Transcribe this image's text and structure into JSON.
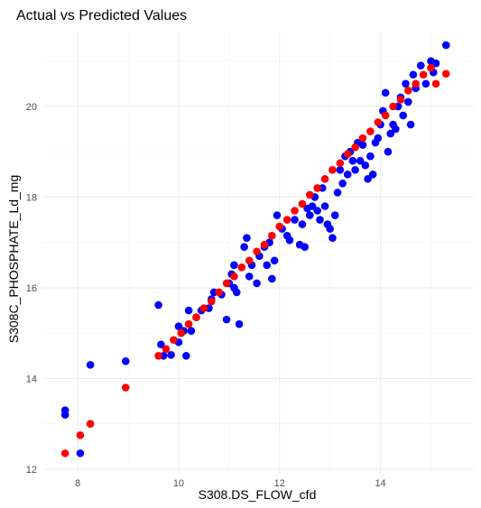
{
  "chart_data": {
    "type": "scatter",
    "title": "Actual vs Predicted Values",
    "xlabel": "S308.DS_FLOW_cfd",
    "ylabel": "S308C_PHOSPHATE_Ld_mg",
    "xlim": [
      7.3,
      15.85
    ],
    "ylim": [
      11.9,
      21.65
    ],
    "x_ticks": [
      8,
      10,
      12,
      14
    ],
    "y_ticks": [
      12,
      14,
      16,
      18,
      20
    ],
    "x_tick_labels": [
      "8",
      "10",
      "12",
      "14"
    ],
    "y_tick_labels": [
      "12",
      "14",
      "16",
      "18",
      "20"
    ],
    "grid": true,
    "legend": "none",
    "series": [
      {
        "color": "#0000ff",
        "points": [
          [
            7.75,
            13.3
          ],
          [
            7.75,
            13.2
          ],
          [
            8.05,
            12.35
          ],
          [
            8.25,
            14.3
          ],
          [
            8.95,
            14.38
          ],
          [
            9.6,
            15.62
          ],
          [
            9.65,
            14.75
          ],
          [
            9.7,
            14.5
          ],
          [
            9.85,
            14.52
          ],
          [
            10.0,
            14.8
          ],
          [
            10.0,
            15.15
          ],
          [
            10.1,
            15.05
          ],
          [
            10.15,
            14.5
          ],
          [
            10.2,
            15.5
          ],
          [
            10.25,
            15.05
          ],
          [
            10.35,
            15.35
          ],
          [
            10.45,
            15.5
          ],
          [
            10.6,
            15.55
          ],
          [
            10.65,
            15.75
          ],
          [
            10.7,
            15.9
          ],
          [
            10.85,
            15.85
          ],
          [
            10.95,
            15.3
          ],
          [
            11.0,
            16.1
          ],
          [
            11.05,
            16.3
          ],
          [
            11.1,
            16.5
          ],
          [
            11.1,
            16.0
          ],
          [
            11.15,
            15.9
          ],
          [
            11.2,
            15.2
          ],
          [
            11.3,
            16.9
          ],
          [
            11.35,
            17.1
          ],
          [
            11.4,
            16.25
          ],
          [
            11.45,
            16.5
          ],
          [
            11.55,
            16.1
          ],
          [
            11.6,
            16.7
          ],
          [
            11.7,
            16.9
          ],
          [
            11.75,
            16.5
          ],
          [
            11.8,
            17.0
          ],
          [
            11.85,
            16.2
          ],
          [
            11.9,
            16.6
          ],
          [
            11.95,
            17.6
          ],
          [
            12.05,
            17.3
          ],
          [
            12.15,
            17.15
          ],
          [
            12.2,
            17.05
          ],
          [
            12.3,
            17.5
          ],
          [
            12.4,
            16.95
          ],
          [
            12.45,
            17.4
          ],
          [
            12.5,
            16.9
          ],
          [
            12.55,
            17.75
          ],
          [
            12.6,
            17.6
          ],
          [
            12.65,
            17.8
          ],
          [
            12.7,
            18.0
          ],
          [
            12.75,
            17.7
          ],
          [
            12.8,
            17.5
          ],
          [
            12.85,
            18.2
          ],
          [
            12.9,
            17.8
          ],
          [
            12.95,
            17.4
          ],
          [
            13.0,
            17.3
          ],
          [
            13.05,
            17.1
          ],
          [
            13.1,
            17.6
          ],
          [
            13.15,
            18.1
          ],
          [
            13.2,
            18.6
          ],
          [
            13.25,
            18.3
          ],
          [
            13.3,
            18.9
          ],
          [
            13.35,
            18.5
          ],
          [
            13.4,
            19.0
          ],
          [
            13.45,
            18.8
          ],
          [
            13.5,
            18.6
          ],
          [
            13.55,
            19.2
          ],
          [
            13.6,
            18.8
          ],
          [
            13.65,
            19.15
          ],
          [
            13.7,
            18.7
          ],
          [
            13.75,
            18.4
          ],
          [
            13.8,
            18.9
          ],
          [
            13.85,
            18.5
          ],
          [
            13.9,
            19.2
          ],
          [
            13.95,
            19.3
          ],
          [
            14.0,
            19.6
          ],
          [
            14.05,
            19.9
          ],
          [
            14.1,
            20.3
          ],
          [
            14.15,
            19.0
          ],
          [
            14.2,
            19.4
          ],
          [
            14.25,
            19.6
          ],
          [
            14.3,
            19.5
          ],
          [
            14.35,
            20.0
          ],
          [
            14.4,
            20.2
          ],
          [
            14.45,
            19.8
          ],
          [
            14.5,
            20.5
          ],
          [
            14.55,
            20.1
          ],
          [
            14.6,
            19.6
          ],
          [
            14.65,
            20.7
          ],
          [
            14.7,
            20.4
          ],
          [
            14.8,
            20.9
          ],
          [
            14.9,
            20.5
          ],
          [
            15.0,
            21.0
          ],
          [
            15.05,
            20.75
          ],
          [
            15.1,
            20.95
          ],
          [
            15.3,
            21.35
          ]
        ]
      },
      {
        "color": "#ff0000",
        "points": [
          [
            7.75,
            12.35
          ],
          [
            8.05,
            12.75
          ],
          [
            8.25,
            13.0
          ],
          [
            8.95,
            13.8
          ],
          [
            9.6,
            14.5
          ],
          [
            9.75,
            14.65
          ],
          [
            9.9,
            14.85
          ],
          [
            10.05,
            15.0
          ],
          [
            10.2,
            15.2
          ],
          [
            10.35,
            15.35
          ],
          [
            10.5,
            15.55
          ],
          [
            10.65,
            15.7
          ],
          [
            10.8,
            15.9
          ],
          [
            10.95,
            16.1
          ],
          [
            11.1,
            16.25
          ],
          [
            11.25,
            16.45
          ],
          [
            11.4,
            16.6
          ],
          [
            11.55,
            16.8
          ],
          [
            11.7,
            16.95
          ],
          [
            11.85,
            17.15
          ],
          [
            12.0,
            17.35
          ],
          [
            12.15,
            17.5
          ],
          [
            12.3,
            17.7
          ],
          [
            12.45,
            17.85
          ],
          [
            12.6,
            18.05
          ],
          [
            12.75,
            18.2
          ],
          [
            12.9,
            18.4
          ],
          [
            13.05,
            18.6
          ],
          [
            13.2,
            18.75
          ],
          [
            13.35,
            18.95
          ],
          [
            13.5,
            19.1
          ],
          [
            13.65,
            19.3
          ],
          [
            13.8,
            19.45
          ],
          [
            13.95,
            19.65
          ],
          [
            14.1,
            19.8
          ],
          [
            14.25,
            20.0
          ],
          [
            14.4,
            20.15
          ],
          [
            14.55,
            20.35
          ],
          [
            14.7,
            20.5
          ],
          [
            14.85,
            20.7
          ],
          [
            15.0,
            20.85
          ],
          [
            15.1,
            20.5
          ],
          [
            15.3,
            20.72
          ]
        ]
      }
    ]
  }
}
